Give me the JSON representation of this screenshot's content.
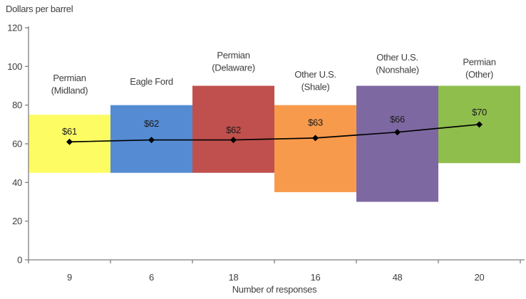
{
  "chart_data": {
    "type": "bar",
    "subtype": "floating-range-bars-with-average-line",
    "title": "",
    "ylabel": "Dollars per barrel",
    "xlabel": "Number of responses",
    "ylim": [
      0,
      120
    ],
    "yticks": [
      0,
      20,
      40,
      60,
      80,
      100,
      120
    ],
    "grid": false,
    "legend": "none",
    "categories": [
      "Permian (Midland)",
      "Eagle Ford",
      "Permian (Delaware)",
      "Other U.S. (Shale)",
      "Other U.S. (Nonshale)",
      "Permian (Other)"
    ],
    "category_label_lines": [
      [
        "Permian",
        "(Midland)"
      ],
      [
        "Eagle Ford"
      ],
      [
        "Permian",
        "(Delaware)"
      ],
      [
        "Other U.S.",
        "(Shale)"
      ],
      [
        "Other U.S.",
        "(Nonshale)"
      ],
      [
        "Permian",
        "(Other)"
      ]
    ],
    "responses": [
      "9",
      "6",
      "18",
      "16",
      "48",
      "20"
    ],
    "ranges": [
      [
        45,
        75
      ],
      [
        45,
        80
      ],
      [
        45,
        90
      ],
      [
        35,
        80
      ],
      [
        30,
        90
      ],
      [
        50,
        90
      ]
    ],
    "series": [
      {
        "name": "average",
        "values": [
          61,
          62,
          62,
          63,
          66,
          70
        ]
      }
    ],
    "average_labels": [
      "$61",
      "$62",
      "$62",
      "$63",
      "$66",
      "$70"
    ],
    "bar_colors": [
      "#FDFD63",
      "#548BD3",
      "#C0504D",
      "#F89A4C",
      "#7E68A2",
      "#8FBE4D"
    ],
    "line_color": "#000000",
    "marker_color": "#000000",
    "axis_color": "#7f7f7f",
    "text_color": "#3f3f3f",
    "value_label_color": "#1a1a1a"
  }
}
